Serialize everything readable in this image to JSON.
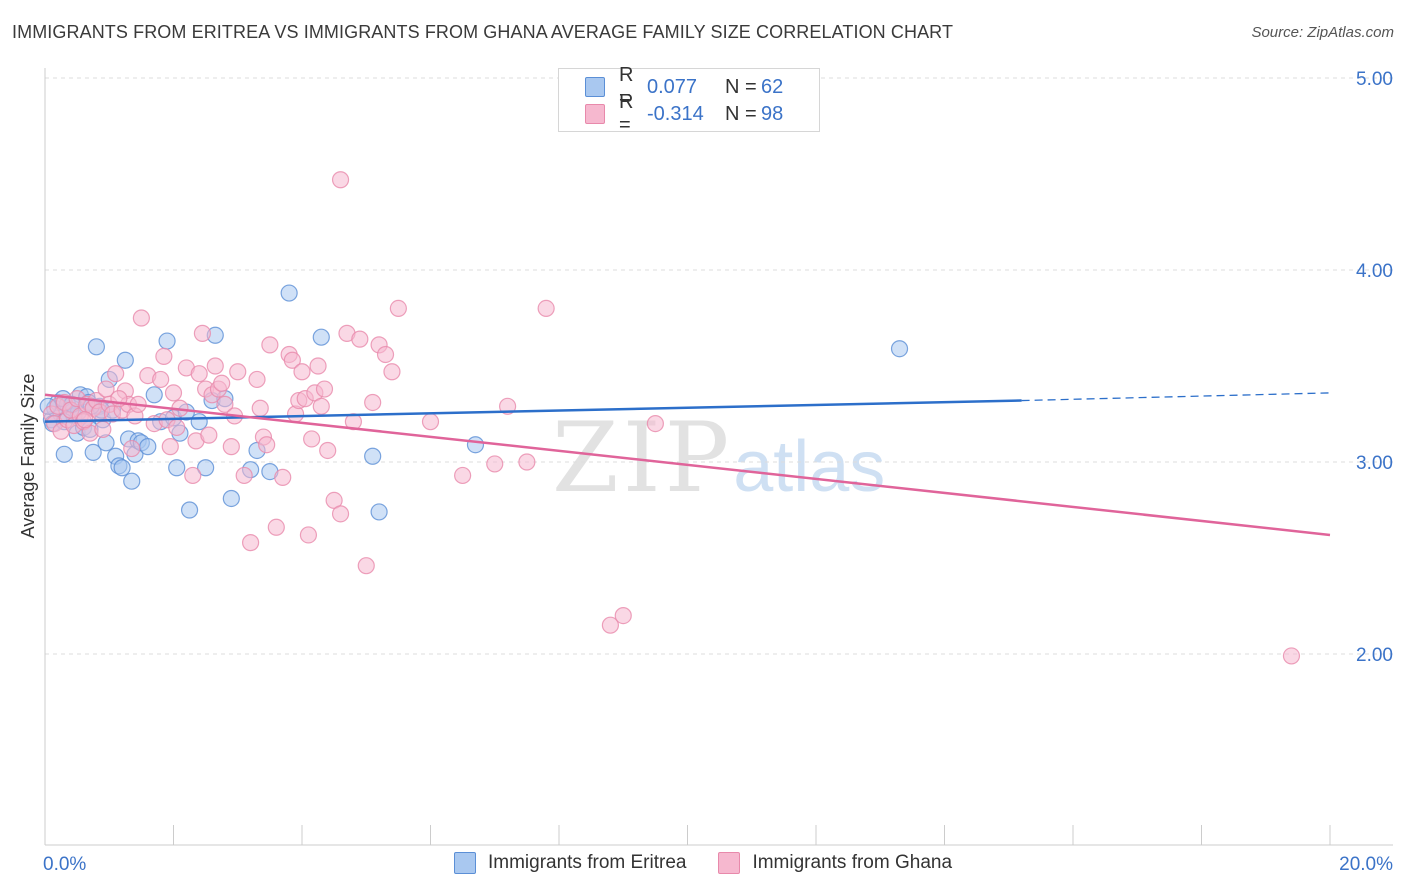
{
  "title": "IMMIGRANTS FROM ERITREA VS IMMIGRANTS FROM GHANA AVERAGE FAMILY SIZE CORRELATION CHART",
  "source": "Source: ZipAtlas.com",
  "watermark": {
    "zip": "ZIP",
    "atlas": "atlas"
  },
  "legend": {
    "eritrea": {
      "r_label": "R =",
      "r_value": "0.077",
      "n_label": "N =",
      "n_value": "62"
    },
    "ghana": {
      "r_label": "R =",
      "r_value": "-0.314",
      "n_label": "N =",
      "n_value": "98"
    }
  },
  "bottom_legend": {
    "eritrea": "Immigrants from Eritrea",
    "ghana": "Immigrants from Ghana"
  },
  "colors": {
    "eritrea_fill": "#a9c8f0",
    "eritrea_stroke": "#5b8fd6",
    "eritrea_line": "#2c6fca",
    "ghana_fill": "#f6b8cf",
    "ghana_stroke": "#e889ab",
    "ghana_line": "#e0649a",
    "axis_label": "#3b73c8",
    "grid": "#dddddd"
  },
  "chart_data": {
    "type": "scatter",
    "title": "IMMIGRANTS FROM ERITREA VS IMMIGRANTS FROM GHANA AVERAGE FAMILY SIZE CORRELATION CHART",
    "xlabel": "",
    "ylabel": "Average Family Size",
    "xlim": [
      0,
      20
    ],
    "ylim": [
      1.0,
      5.1
    ],
    "x_tick_labels": [
      "0.0%",
      "20.0%"
    ],
    "y_ticks": [
      2.0,
      3.0,
      4.0,
      5.0
    ],
    "y_tick_labels": [
      "2.00",
      "3.00",
      "4.00",
      "5.00"
    ],
    "grid": true,
    "series": [
      {
        "name": "Immigrants from Eritrea",
        "trend": {
          "x0": 0,
          "y0": 3.21,
          "x1": 15.2,
          "y1": 3.32,
          "dash_to_x": 20,
          "dash_to_y": 3.36
        },
        "points": [
          [
            0.1,
            3.22
          ],
          [
            0.15,
            3.28
          ],
          [
            0.2,
            3.31
          ],
          [
            0.25,
            3.25
          ],
          [
            0.3,
            3.04
          ],
          [
            0.35,
            3.3
          ],
          [
            0.4,
            3.27
          ],
          [
            0.45,
            3.24
          ],
          [
            0.5,
            3.15
          ],
          [
            0.55,
            3.35
          ],
          [
            0.6,
            3.18
          ],
          [
            0.65,
            3.34
          ],
          [
            0.7,
            3.17
          ],
          [
            0.75,
            3.05
          ],
          [
            0.8,
            3.6
          ],
          [
            0.85,
            3.29
          ],
          [
            0.9,
            3.22
          ],
          [
            0.95,
            3.1
          ],
          [
            1.0,
            3.43
          ],
          [
            1.05,
            3.27
          ],
          [
            1.1,
            3.03
          ],
          [
            1.15,
            2.98
          ],
          [
            1.2,
            2.97
          ],
          [
            1.25,
            3.53
          ],
          [
            1.3,
            3.12
          ],
          [
            1.35,
            2.9
          ],
          [
            1.4,
            3.04
          ],
          [
            1.45,
            3.11
          ],
          [
            1.5,
            3.1
          ],
          [
            1.6,
            3.08
          ],
          [
            1.7,
            3.35
          ],
          [
            1.8,
            3.21
          ],
          [
            1.9,
            3.63
          ],
          [
            2.0,
            3.23
          ],
          [
            2.05,
            2.97
          ],
          [
            2.1,
            3.15
          ],
          [
            2.2,
            3.26
          ],
          [
            2.25,
            2.75
          ],
          [
            2.4,
            3.21
          ],
          [
            2.5,
            2.97
          ],
          [
            2.6,
            3.32
          ],
          [
            2.65,
            3.66
          ],
          [
            2.8,
            3.33
          ],
          [
            2.9,
            2.81
          ],
          [
            3.2,
            2.96
          ],
          [
            3.3,
            3.06
          ],
          [
            3.5,
            2.95
          ],
          [
            3.8,
            3.88
          ],
          [
            4.3,
            3.65
          ],
          [
            5.1,
            3.03
          ],
          [
            5.2,
            2.74
          ],
          [
            6.7,
            3.09
          ],
          [
            13.3,
            3.59
          ],
          [
            0.05,
            3.29
          ],
          [
            0.12,
            3.2
          ],
          [
            0.28,
            3.33
          ],
          [
            0.52,
            3.26
          ],
          [
            0.68,
            3.31
          ],
          [
            0.88,
            3.27
          ],
          [
            0.3,
            3.21
          ],
          [
            0.72,
            3.29
          ],
          [
            0.42,
            3.3
          ]
        ]
      },
      {
        "name": "Immigrants from Ghana",
        "trend": {
          "x0": 0,
          "y0": 3.35,
          "x1": 20,
          "y1": 2.62
        },
        "points": [
          [
            0.1,
            3.25
          ],
          [
            0.15,
            3.2
          ],
          [
            0.2,
            3.29
          ],
          [
            0.25,
            3.16
          ],
          [
            0.3,
            3.31
          ],
          [
            0.35,
            3.22
          ],
          [
            0.4,
            3.27
          ],
          [
            0.45,
            3.19
          ],
          [
            0.5,
            3.33
          ],
          [
            0.55,
            3.24
          ],
          [
            0.6,
            3.21
          ],
          [
            0.65,
            3.3
          ],
          [
            0.7,
            3.15
          ],
          [
            0.75,
            3.28
          ],
          [
            0.8,
            3.32
          ],
          [
            0.85,
            3.26
          ],
          [
            0.9,
            3.17
          ],
          [
            0.95,
            3.38
          ],
          [
            1.0,
            3.3
          ],
          [
            1.05,
            3.25
          ],
          [
            1.1,
            3.46
          ],
          [
            1.2,
            3.27
          ],
          [
            1.25,
            3.37
          ],
          [
            1.3,
            3.3
          ],
          [
            1.35,
            3.07
          ],
          [
            1.4,
            3.24
          ],
          [
            1.45,
            3.3
          ],
          [
            1.5,
            3.75
          ],
          [
            1.6,
            3.45
          ],
          [
            1.7,
            3.2
          ],
          [
            1.8,
            3.43
          ],
          [
            1.85,
            3.55
          ],
          [
            1.9,
            3.22
          ],
          [
            1.95,
            3.08
          ],
          [
            2.0,
            3.36
          ],
          [
            2.05,
            3.18
          ],
          [
            2.1,
            3.28
          ],
          [
            2.2,
            3.49
          ],
          [
            2.3,
            2.93
          ],
          [
            2.35,
            3.11
          ],
          [
            2.4,
            3.46
          ],
          [
            2.45,
            3.67
          ],
          [
            2.5,
            3.38
          ],
          [
            2.55,
            3.14
          ],
          [
            2.6,
            3.35
          ],
          [
            2.65,
            3.5
          ],
          [
            2.7,
            3.38
          ],
          [
            2.75,
            3.41
          ],
          [
            2.8,
            3.3
          ],
          [
            2.9,
            3.08
          ],
          [
            3.0,
            3.47
          ],
          [
            3.1,
            2.93
          ],
          [
            3.2,
            2.58
          ],
          [
            3.3,
            3.43
          ],
          [
            3.35,
            3.28
          ],
          [
            3.4,
            3.13
          ],
          [
            3.45,
            3.09
          ],
          [
            3.5,
            3.61
          ],
          [
            3.6,
            2.66
          ],
          [
            3.7,
            2.92
          ],
          [
            3.8,
            3.56
          ],
          [
            3.85,
            3.53
          ],
          [
            3.9,
            3.25
          ],
          [
            3.95,
            3.32
          ],
          [
            4.0,
            3.47
          ],
          [
            4.05,
            3.33
          ],
          [
            4.1,
            2.62
          ],
          [
            4.15,
            3.12
          ],
          [
            4.2,
            3.36
          ],
          [
            4.25,
            3.5
          ],
          [
            4.3,
            3.29
          ],
          [
            4.35,
            3.38
          ],
          [
            4.4,
            3.06
          ],
          [
            4.5,
            2.8
          ],
          [
            4.6,
            2.73
          ],
          [
            4.7,
            3.67
          ],
          [
            4.8,
            3.21
          ],
          [
            4.9,
            3.64
          ],
          [
            5.0,
            2.46
          ],
          [
            5.1,
            3.31
          ],
          [
            5.2,
            3.61
          ],
          [
            5.3,
            3.56
          ],
          [
            5.4,
            3.47
          ],
          [
            5.5,
            3.8
          ],
          [
            4.6,
            4.47
          ],
          [
            6.0,
            3.21
          ],
          [
            6.5,
            2.93
          ],
          [
            7.0,
            2.99
          ],
          [
            7.2,
            3.29
          ],
          [
            7.5,
            3.0
          ],
          [
            7.8,
            3.8
          ],
          [
            8.8,
            2.15
          ],
          [
            9.0,
            2.2
          ],
          [
            9.5,
            3.2
          ],
          [
            19.4,
            1.99
          ],
          [
            1.15,
            3.33
          ],
          [
            0.62,
            3.22
          ],
          [
            2.95,
            3.24
          ]
        ]
      }
    ]
  }
}
